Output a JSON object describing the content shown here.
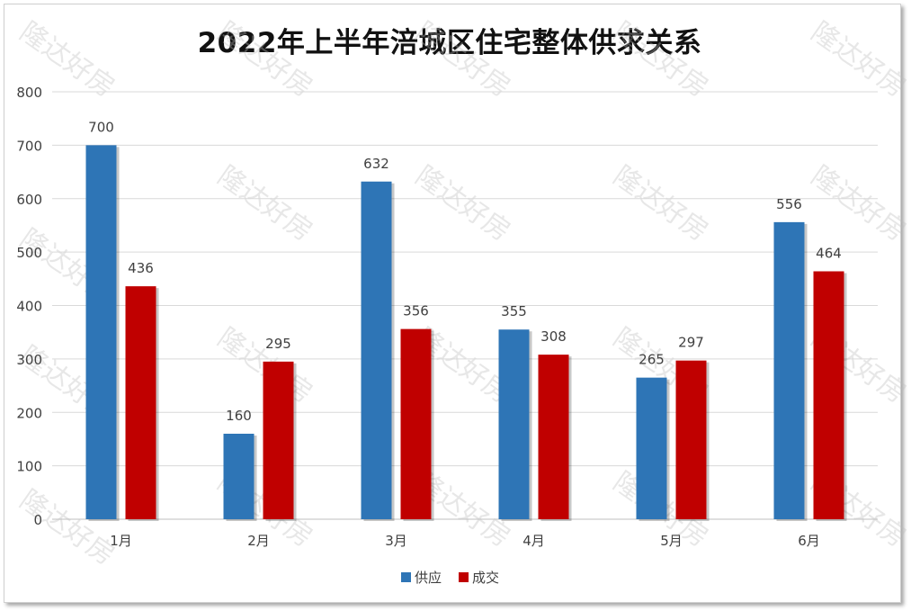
{
  "chart_data": {
    "type": "bar",
    "title": "2022年上半年涪城区住宅整体供求关系",
    "categories": [
      "1月",
      "2月",
      "3月",
      "4月",
      "5月",
      "6月"
    ],
    "series": [
      {
        "name": "供应",
        "values": [
          700,
          160,
          632,
          355,
          265,
          556
        ],
        "color": "#2e75b6"
      },
      {
        "name": "成交",
        "values": [
          436,
          295,
          356,
          308,
          297,
          464
        ],
        "color": "#c00000"
      }
    ],
    "ylim": [
      0,
      800
    ],
    "yticks": [
      "0",
      "100",
      "200",
      "300",
      "400",
      "500",
      "600",
      "700",
      "800"
    ],
    "xlabel": "",
    "ylabel": "",
    "grid": true,
    "legend": "bottom"
  },
  "watermark": "隆达好房"
}
